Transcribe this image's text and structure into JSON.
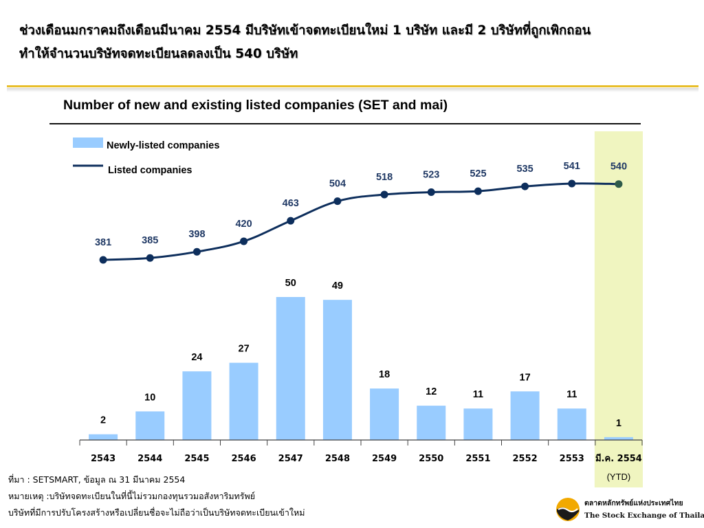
{
  "headline": {
    "line1": "ช่วงเดือนมกราคมถึงเดือนมีนาคม 2554 มีบริษัทเข้าจดทะเบียนใหม่ 1 บริษัท และมี 2 บริษัทที่ถูกเพิกถอน",
    "line2": "ทำให้จำนวนบริษัทจดทะเบียนลดลงเป็น 540 บริษัท"
  },
  "colors": {
    "bar": "#99ccff",
    "line": "#0d2e5c",
    "marker": "#0d2e5c",
    "last_marker": "#2e5a4a",
    "highlight": "#f0f5c0",
    "label": "#1f3864",
    "rule": "#e8be2a"
  },
  "chart_data": {
    "type": "bar",
    "title": "Number of new and existing listed companies (SET and mai)",
    "categories": [
      "2543",
      "2544",
      "2545",
      "2546",
      "2547",
      "2548",
      "2549",
      "2550",
      "2551",
      "2552",
      "2553",
      "มี.ค. 2554"
    ],
    "category_note": "(YTD)",
    "highlight_category": "มี.ค. 2554",
    "series": [
      {
        "name": "Newly-listed companies",
        "type": "bar",
        "values": [
          2,
          10,
          24,
          27,
          50,
          49,
          18,
          12,
          11,
          17,
          11,
          1
        ]
      },
      {
        "name": "Listed companies",
        "type": "line",
        "values": [
          381,
          385,
          398,
          420,
          463,
          504,
          518,
          523,
          525,
          535,
          541,
          540
        ]
      }
    ],
    "legend_position": "top-left",
    "grid": false,
    "bar_ylim": [
      0,
      100
    ],
    "line_ylim": [
      300,
      570
    ]
  },
  "footnotes": {
    "source": "ที่มา : SETSMART, ข้อมูล ณ 31 มีนาคม 2554",
    "note1": "หมายเหตุ :บริษัทจดทะเบียนในที่นี้ไม่รวมกองทุนรวมอสังหาริมทรัพย์",
    "note2": "บริษัทที่มีการปรับโครงสร้างหรือเปลี่ยนชื่อจะไม่ถือว่าเป็นบริษัทจดทะเบียนเข้าใหม่"
  },
  "logo": {
    "name_th": "ตลาดหลักทรัพย์แห่งประเทศไทย",
    "name_en": "The Stock Exchange of Thailand",
    "icon": "set-logo-icon"
  }
}
